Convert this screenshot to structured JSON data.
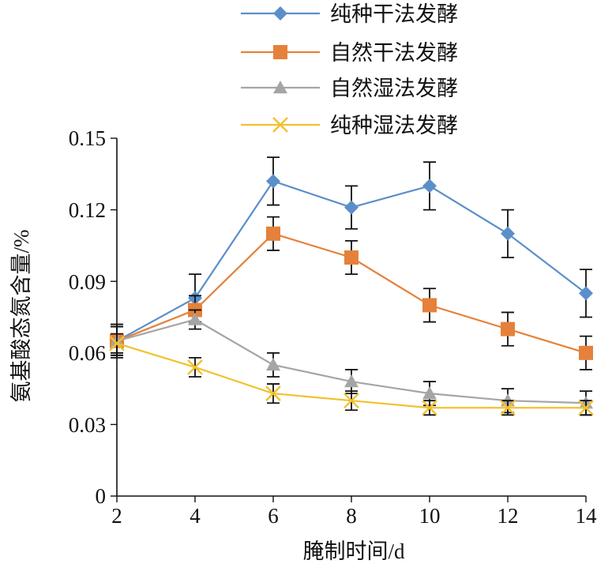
{
  "chart_data": {
    "type": "line",
    "xlabel": "腌制时间/d",
    "ylabel": "氨基酸态氮含量/%",
    "x": [
      2,
      4,
      6,
      8,
      10,
      12,
      14
    ],
    "x_ticks": [
      "2",
      "4",
      "6",
      "8",
      "10",
      "12",
      "14"
    ],
    "xlim": [
      2,
      14
    ],
    "y_ticks": [
      "0",
      "0.03",
      "0.06",
      "0.09",
      "0.12",
      "0.15"
    ],
    "ylim": [
      0,
      0.15
    ],
    "grid": false,
    "legend_position": "top",
    "series": [
      {
        "name": "纯种干法发酵",
        "color": "#5B8FC9",
        "marker": "diamond",
        "values": [
          0.065,
          0.083,
          0.132,
          0.121,
          0.13,
          0.11,
          0.085
        ],
        "errors": [
          0.007,
          0.01,
          0.01,
          0.009,
          0.01,
          0.01,
          0.01
        ]
      },
      {
        "name": "自然干法发酵",
        "color": "#E5813A",
        "marker": "square",
        "values": [
          0.065,
          0.078,
          0.11,
          0.1,
          0.08,
          0.07,
          0.06
        ],
        "errors": [
          0.006,
          0.006,
          0.007,
          0.007,
          0.007,
          0.007,
          0.007
        ]
      },
      {
        "name": "自然湿法发酵",
        "color": "#A5A5A5",
        "marker": "triangle",
        "values": [
          0.065,
          0.074,
          0.055,
          0.048,
          0.043,
          0.04,
          0.039
        ],
        "errors": [
          0.006,
          0.004,
          0.005,
          0.005,
          0.005,
          0.005,
          0.005
        ]
      },
      {
        "name": "纯种湿法发酵",
        "color": "#F2C12E",
        "marker": "x",
        "values": [
          0.064,
          0.054,
          0.043,
          0.04,
          0.037,
          0.037,
          0.037
        ],
        "errors": [
          0.004,
          0.004,
          0.004,
          0.004,
          0.003,
          0.003,
          0.003
        ]
      }
    ]
  }
}
